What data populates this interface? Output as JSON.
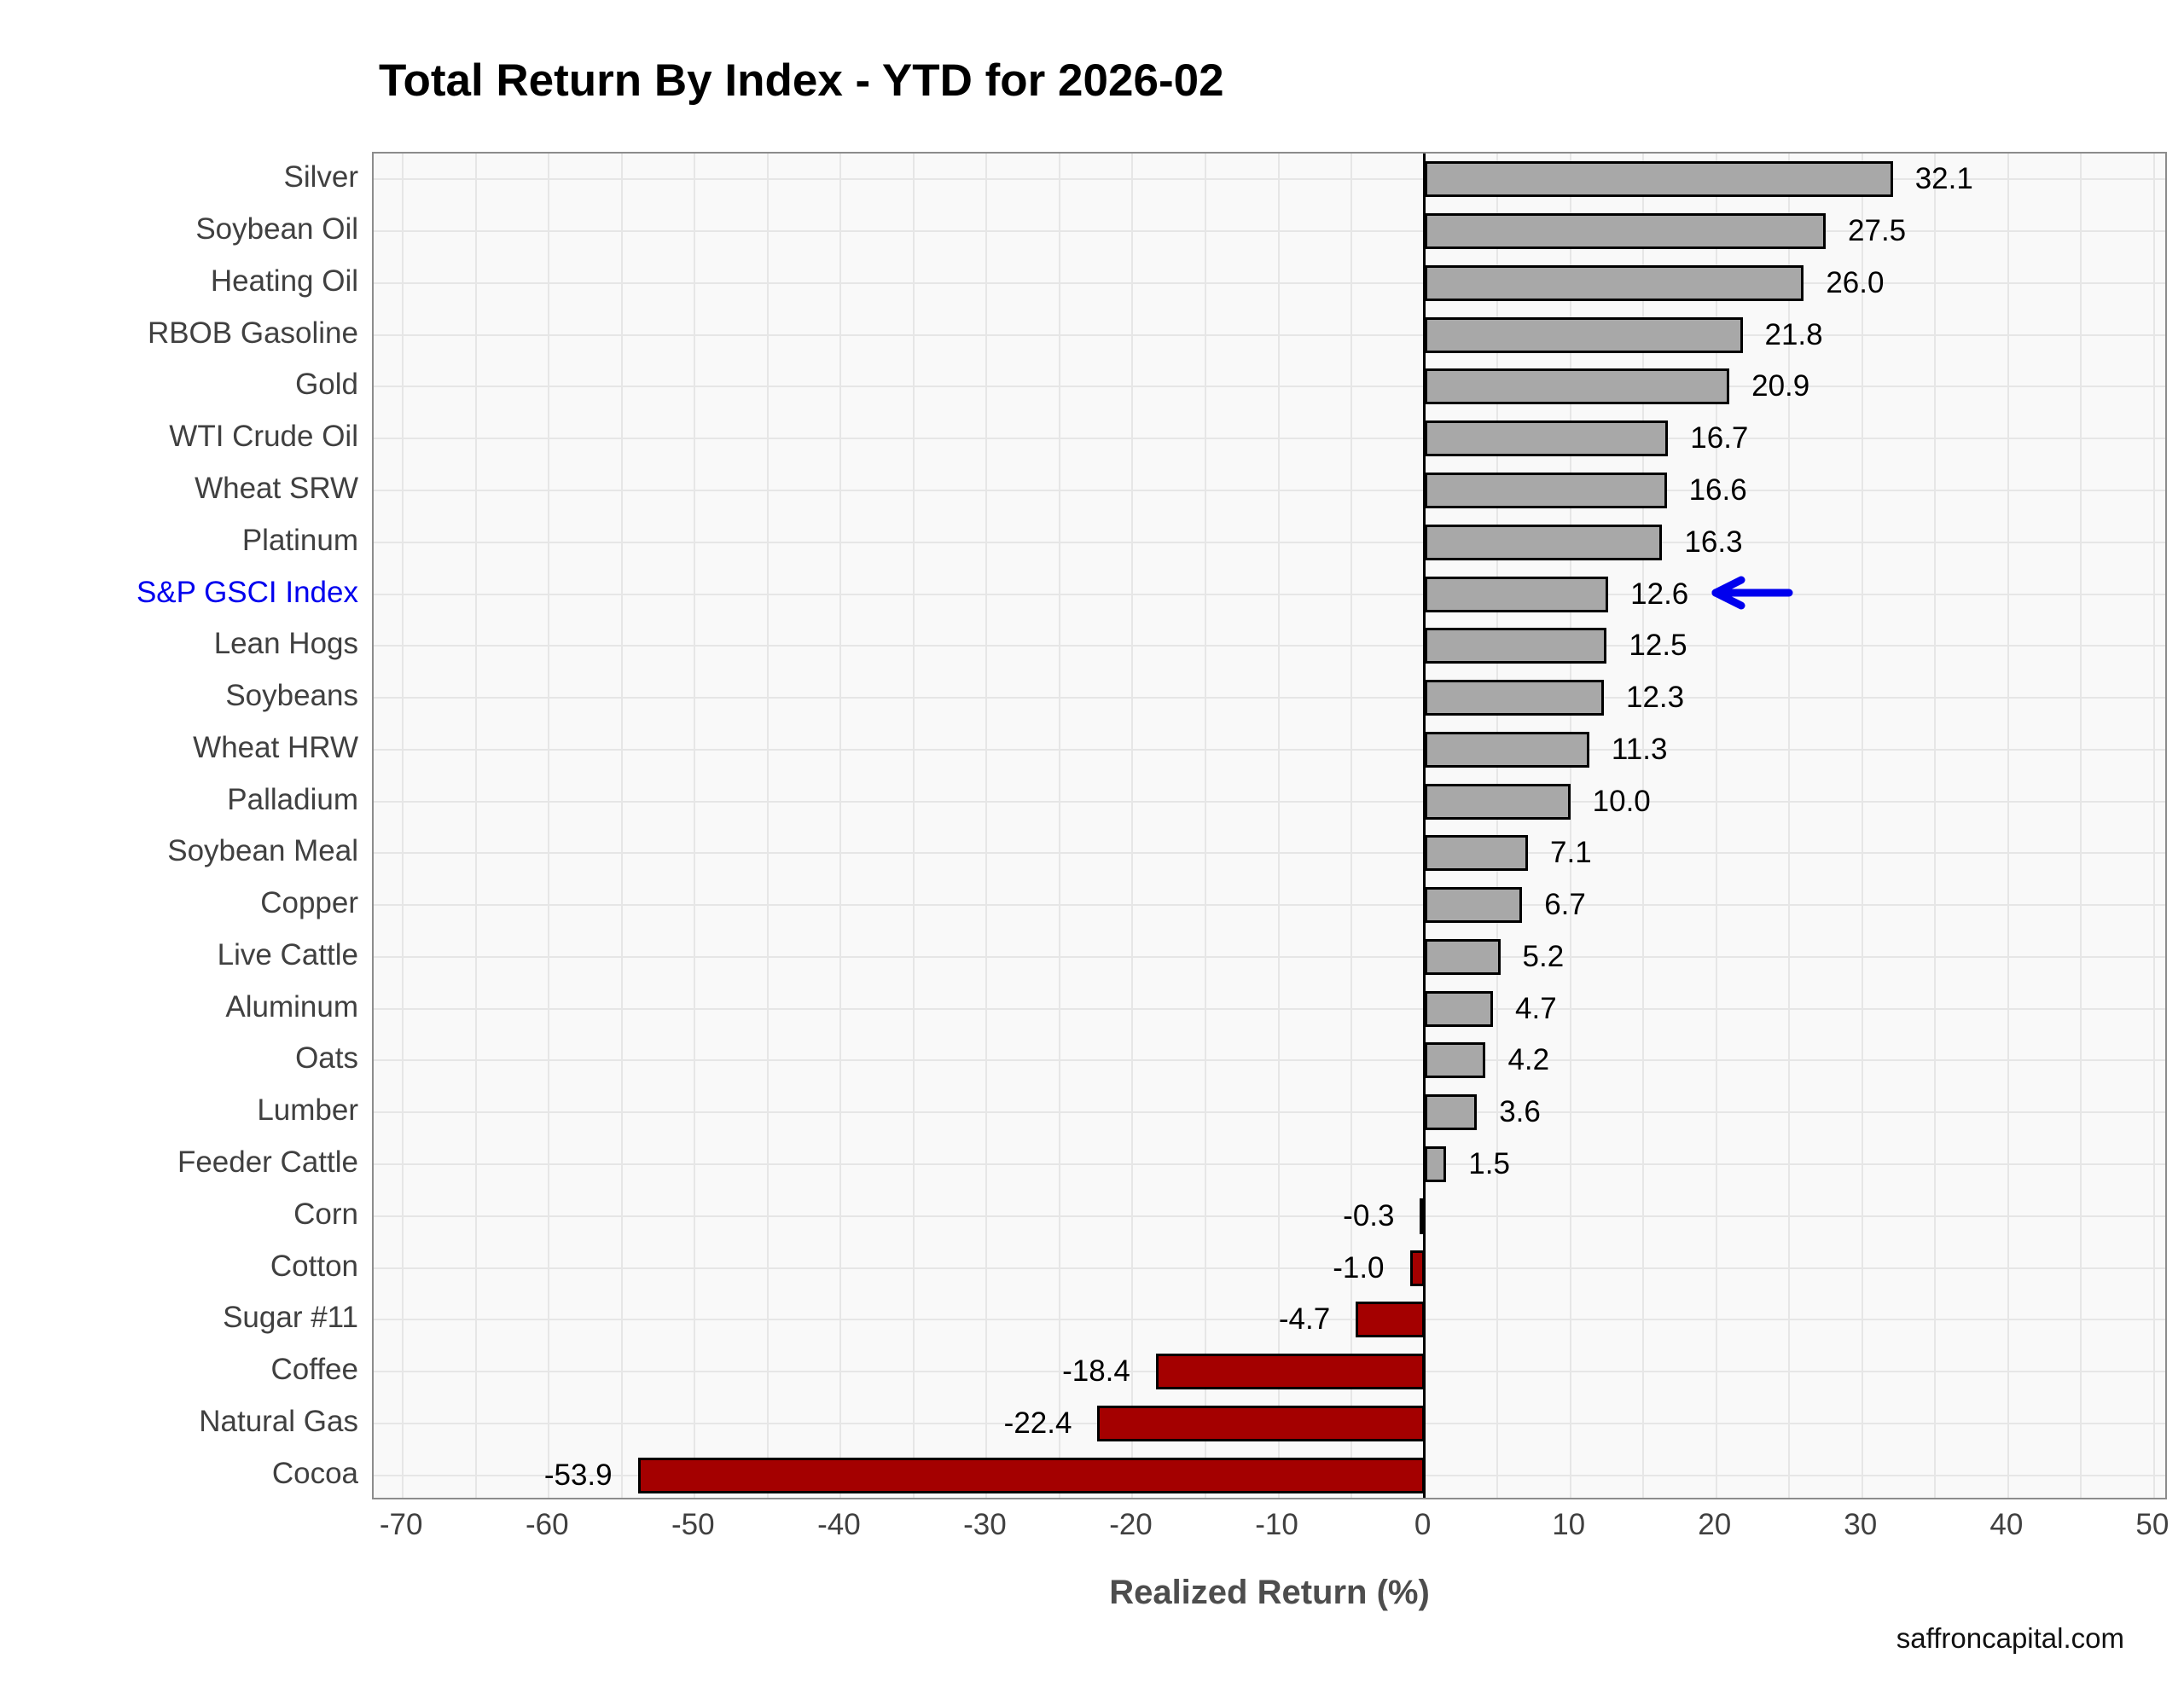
{
  "title": "Total Return By Index - YTD for 2026-02",
  "watermark": "saffroncapital.com",
  "chart_data": {
    "type": "bar",
    "orientation": "horizontal",
    "title": "Total Return By Index - YTD for 2026-02",
    "xlabel": "Realized Return (%)",
    "ylabel": "",
    "xlim": [
      -72,
      51
    ],
    "x_ticks": [
      -70,
      -60,
      -50,
      -40,
      -30,
      -20,
      -10,
      0,
      10,
      20,
      30,
      40,
      50
    ],
    "minor_grid_step": 5,
    "grid": true,
    "legend": "none",
    "categories": [
      "Silver",
      "Soybean Oil",
      "Heating Oil",
      "RBOB Gasoline",
      "Gold",
      "WTI Crude Oil",
      "Wheat SRW",
      "Platinum",
      "S&P GSCI Index",
      "Lean Hogs",
      "Soybeans",
      "Wheat HRW",
      "Palladium",
      "Soybean Meal",
      "Copper",
      "Live Cattle",
      "Aluminum",
      "Oats",
      "Lumber",
      "Feeder Cattle",
      "Corn",
      "Cotton",
      "Sugar #11",
      "Coffee",
      "Natural Gas",
      "Cocoa"
    ],
    "values": [
      32.1,
      27.5,
      26.0,
      21.8,
      20.9,
      16.7,
      16.6,
      16.3,
      12.6,
      12.5,
      12.3,
      11.3,
      10.0,
      7.1,
      6.7,
      5.2,
      4.7,
      4.2,
      3.6,
      1.5,
      -0.3,
      -1.0,
      -4.7,
      -18.4,
      -22.4,
      -53.9
    ],
    "highlight": {
      "category": "S&P GSCI Index",
      "value": 12.6,
      "annotation_icon": "left-arrow-icon",
      "color": "#0000ee"
    },
    "colors": {
      "positive_bar": "#a8a8a8",
      "negative_bar": "#a40000",
      "bar_border": "#000000",
      "highlight_blue": "#0000ee",
      "grid": "#e6e6e6",
      "panel_bg": "#f9f9f9",
      "panel_border": "#8c8c8c",
      "zero_line": "#000000",
      "tick_text": "#404040",
      "title_text": "#000000"
    }
  }
}
